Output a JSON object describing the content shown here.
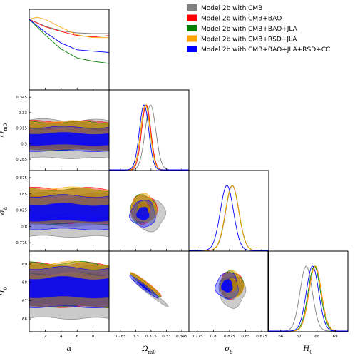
{
  "chart_data": {
    "type": "triangle",
    "legend_position": "top-right",
    "series": [
      {
        "name": "Model 2b with CMB",
        "color": "#808080"
      },
      {
        "name": "Model 2b with CMB+BAO",
        "color": "#ff0000"
      },
      {
        "name": "Model 2b with CMB+BAO+JLA",
        "color": "#008000"
      },
      {
        "name": "Model 2b with CMB+RSD+JLA",
        "color": "#ffa500"
      },
      {
        "name": "Model 2b with CMB+BAO+JLA+RSD+CC",
        "color": "#0000ff"
      }
    ],
    "parameters": [
      {
        "label": "α",
        "ticks": [
          2,
          4,
          6,
          8
        ],
        "range": [
          0,
          10
        ]
      },
      {
        "label": "Ω",
        "subscript": "m0",
        "ticks": [
          0.285,
          0.3,
          0.315,
          0.33,
          0.345
        ],
        "range": [
          0.274,
          0.352
        ]
      },
      {
        "label": "σ",
        "subscript": "8",
        "ticks": [
          0.775,
          0.8,
          0.825,
          0.85,
          0.875
        ],
        "range": [
          0.762,
          0.886
        ]
      },
      {
        "label": "H",
        "subscript": "0",
        "ticks": [
          66,
          67,
          68,
          69
        ],
        "range": [
          65.3,
          69.7
        ]
      }
    ],
    "marginals": {
      "alpha": [
        [
          [
            0,
            1.0
          ],
          [
            2,
            0.9
          ],
          [
            4,
            0.83
          ],
          [
            6,
            0.8
          ],
          [
            8,
            0.79
          ],
          [
            10,
            0.79
          ]
        ],
        [
          [
            0,
            1.0
          ],
          [
            2,
            0.89
          ],
          [
            4,
            0.82
          ],
          [
            6,
            0.76
          ],
          [
            8,
            0.74
          ],
          [
            10,
            0.76
          ]
        ],
        [
          [
            0,
            1.0
          ],
          [
            2,
            0.77
          ],
          [
            4,
            0.56
          ],
          [
            6,
            0.43
          ],
          [
            8,
            0.38
          ],
          [
            10,
            0.35
          ]
        ],
        [
          [
            0,
            1.0
          ],
          [
            1,
            1.03
          ],
          [
            2,
            1.0
          ],
          [
            4,
            0.88
          ],
          [
            6,
            0.77
          ],
          [
            8,
            0.73
          ],
          [
            10,
            0.73
          ]
        ],
        [
          [
            0,
            1.0
          ],
          [
            2,
            0.81
          ],
          [
            4,
            0.65
          ],
          [
            6,
            0.55
          ],
          [
            8,
            0.53
          ],
          [
            10,
            0.51
          ]
        ]
      ],
      "omega_m0": [
        {
          "mean": 0.3145,
          "sigma": 0.0052
        },
        {
          "mean": 0.3103,
          "sigma": 0.0045
        },
        {
          "mean": 0.3095,
          "sigma": 0.0046
        },
        {
          "mean": 0.3095,
          "sigma": 0.0046
        },
        {
          "mean": 0.3082,
          "sigma": 0.0046
        }
      ],
      "sigma_8": [
        {
          "mean": 0.8295,
          "sigma": 0.0102
        },
        {
          "mean": 0.8292,
          "sigma": 0.0103
        },
        {
          "mean": 0.8292,
          "sigma": 0.0103
        },
        {
          "mean": 0.8292,
          "sigma": 0.0103
        },
        {
          "mean": 0.821,
          "sigma": 0.0102
        }
      ],
      "H_0": [
        {
          "mean": 67.4,
          "sigma": 0.34
        },
        {
          "mean": 67.9,
          "sigma": 0.34
        },
        {
          "mean": 67.85,
          "sigma": 0.34
        },
        {
          "mean": 67.9,
          "sigma": 0.34
        },
        {
          "mean": 67.75,
          "sigma": 0.34
        }
      ]
    },
    "contours_2sigma": {
      "alpha_omega": [
        [
          0.3045,
          0.0183
        ],
        [
          0.3082,
          0.0133
        ],
        [
          0.3075,
          0.0133
        ],
        [
          0.3078,
          0.0135
        ],
        [
          0.3045,
          0.0115
        ]
      ],
      "alpha_sigma8": [
        [
          0.8172,
          0.0325
        ],
        [
          0.8318,
          0.0265
        ],
        [
          0.8308,
          0.0262
        ],
        [
          0.8322,
          0.0265
        ],
        [
          0.8215,
          0.0255
        ]
      ],
      "alpha_H0": [
        [
          67.46,
          1.42
        ],
        [
          67.84,
          1.17
        ],
        [
          67.87,
          1.18
        ],
        [
          67.88,
          1.18
        ],
        [
          67.72,
          1.06
        ]
      ],
      "omega_sigma8": [
        [
          0.3135,
          0.818,
          0.0152,
          0.0245
        ],
        [
          0.308,
          0.8265,
          0.0125,
          0.0215
        ],
        [
          0.3072,
          0.8265,
          0.0125,
          0.0215
        ],
        [
          0.3075,
          0.8275,
          0.0125,
          0.0215
        ],
        [
          0.3072,
          0.8195,
          0.0123,
          0.0205
        ]
      ],
      "omega_H0": [
        [
          0.3145,
          67.42,
          0.0125
        ],
        [
          0.3103,
          67.88,
          0.0105
        ],
        [
          0.3095,
          67.86,
          0.0105
        ],
        [
          0.3095,
          67.9,
          0.0105
        ],
        [
          0.3082,
          67.75,
          0.01
        ]
      ],
      "sigma8_H0": [
        [
          0.829,
          67.5,
          0.0205,
          0.86
        ],
        [
          0.8285,
          67.85,
          0.0178,
          0.72
        ],
        [
          0.8285,
          67.85,
          0.0178,
          0.72
        ],
        [
          0.8285,
          67.85,
          0.0178,
          0.72
        ],
        [
          0.8215,
          67.8,
          0.0174,
          0.72
        ]
      ]
    }
  }
}
